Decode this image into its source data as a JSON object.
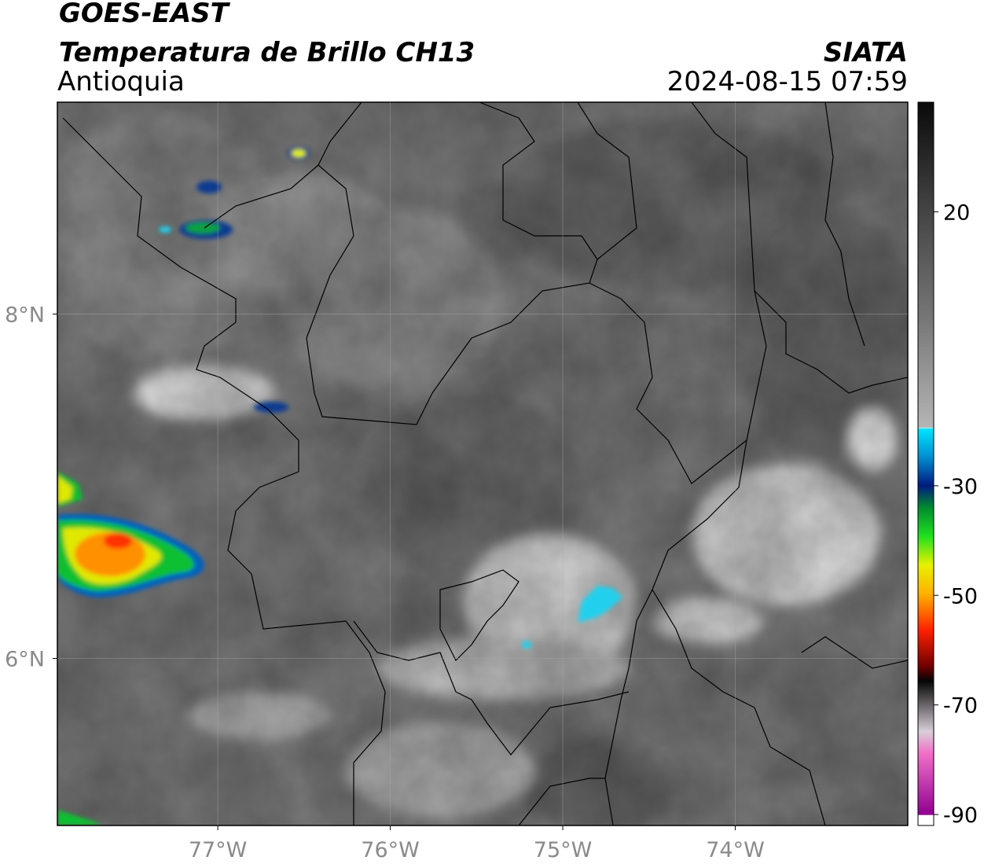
{
  "header": {
    "title": "GOES-EAST",
    "subtitle": "Temperatura de Brillo CH13",
    "region": "Antioquia",
    "source": "SIATA",
    "datetime": "2024-08-15 07:59"
  },
  "map": {
    "xlim": [
      -77.93,
      -73.0
    ],
    "ylim": [
      5.03,
      9.23
    ],
    "lon_ticks": [
      {
        "value": -77,
        "label": "77°W"
      },
      {
        "value": -76,
        "label": "76°W"
      },
      {
        "value": -75,
        "label": "75°W"
      },
      {
        "value": -74,
        "label": "74°W"
      }
    ],
    "lat_ticks": [
      {
        "value": 8,
        "label": "8°N"
      },
      {
        "value": 6,
        "label": "6°N"
      }
    ],
    "grid": true
  },
  "colorbar": {
    "lim": [
      -92,
      40
    ],
    "ticks": [
      20,
      -30,
      -50,
      -70,
      -90
    ]
  }
}
